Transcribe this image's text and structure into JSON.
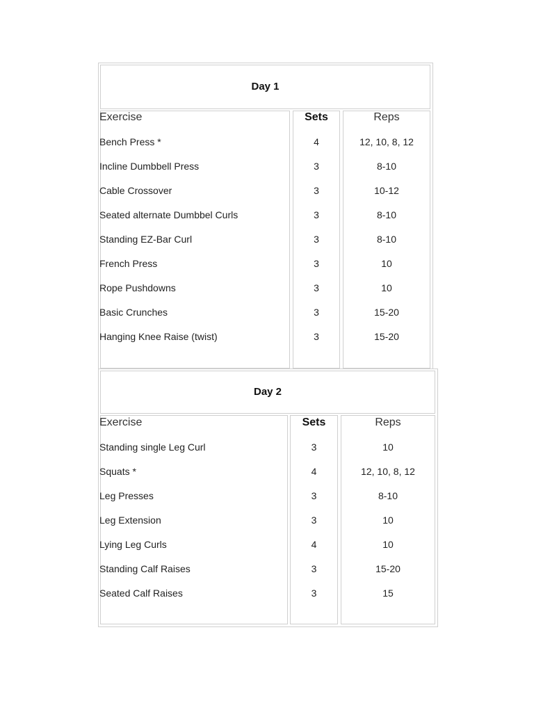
{
  "headers": {
    "exercise": "Exercise",
    "sets": "Sets",
    "reps": "Reps"
  },
  "days": [
    {
      "title": "Day 1",
      "rows": [
        {
          "exercise": "Bench Press *",
          "sets": "4",
          "reps": "12, 10, 8, 12"
        },
        {
          "exercise": "Incline Dumbbell Press",
          "sets": "3",
          "reps": "8-10"
        },
        {
          "exercise": "Cable Crossover",
          "sets": "3",
          "reps": "10-12"
        },
        {
          "exercise": "Seated alternate Dumbbel Curls",
          "sets": "3",
          "reps": "8-10"
        },
        {
          "exercise": "Standing EZ-Bar Curl",
          "sets": "3",
          "reps": "8-10"
        },
        {
          "exercise": "French Press",
          "sets": "3",
          "reps": "10"
        },
        {
          "exercise": "Rope Pushdowns",
          "sets": "3",
          "reps": "10"
        },
        {
          "exercise": "Basic Crunches",
          "sets": "3",
          "reps": "15-20"
        },
        {
          "exercise": "Hanging Knee Raise (twist)",
          "sets": "3",
          "reps": "15-20"
        }
      ]
    },
    {
      "title": "Day 2",
      "rows": [
        {
          "exercise": "Standing single Leg Curl",
          "sets": "3",
          "reps": "10"
        },
        {
          "exercise": "Squats *",
          "sets": "4",
          "reps": "12, 10, 8, 12"
        },
        {
          "exercise": "Leg Presses",
          "sets": "3",
          "reps": "8-10"
        },
        {
          "exercise": "Leg Extension",
          "sets": "3",
          "reps": "10"
        },
        {
          "exercise": "Lying Leg Curls",
          "sets": "4",
          "reps": "10"
        },
        {
          "exercise": "Standing Calf Raises",
          "sets": "3",
          "reps": "15-20"
        },
        {
          "exercise": "Seated Calf Raises",
          "sets": "3",
          "reps": "15"
        }
      ]
    }
  ]
}
